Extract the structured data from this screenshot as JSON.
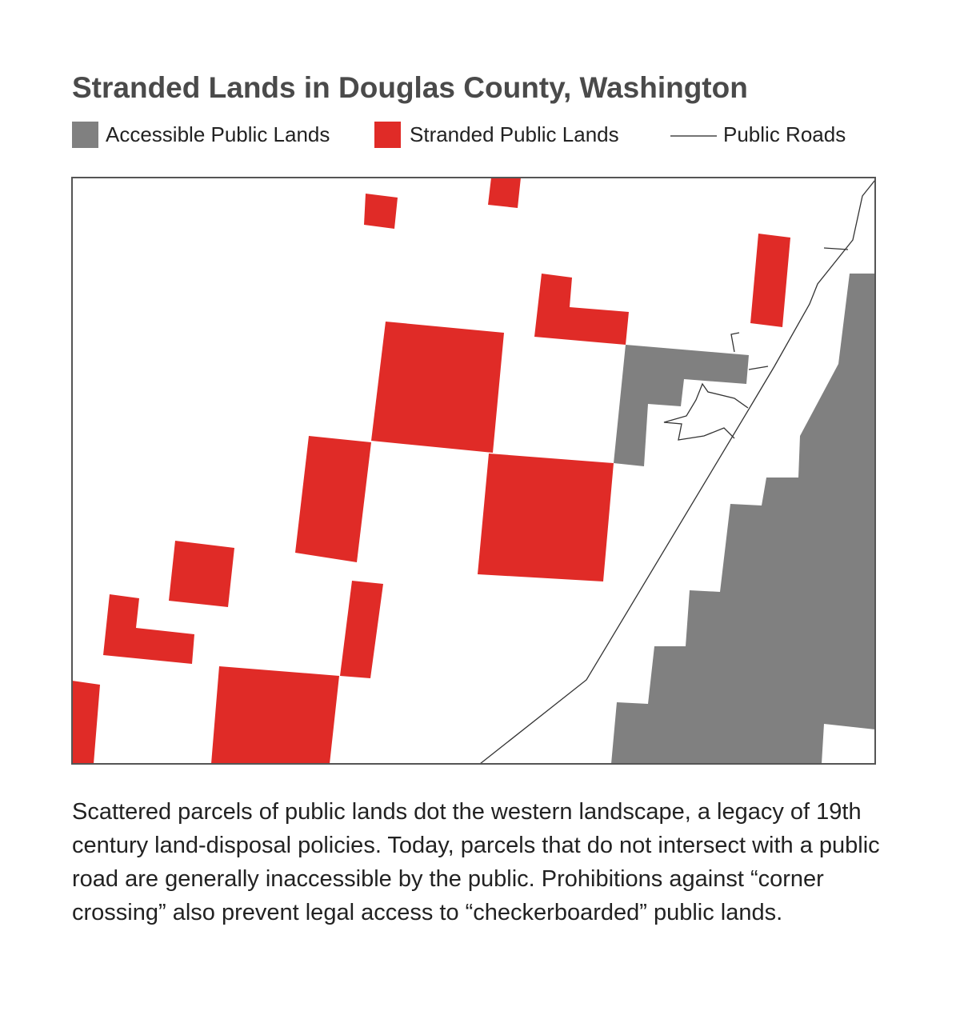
{
  "title": "Stranded Lands in Douglas County, Washington",
  "legend": [
    {
      "label": "Accessible Public Lands"
    },
    {
      "label": "Stranded Public Lands"
    },
    {
      "label": "Public Roads"
    }
  ],
  "caption": "Scattered parcels of public lands dot the western landscape, a legacy of 19th century land-disposal policies. Today, parcels that do not intersect with a public road are generally inaccessible by the public. Prohibitions against “corner crossing” also prevent legal access to “checkerboarded” public lands."
}
